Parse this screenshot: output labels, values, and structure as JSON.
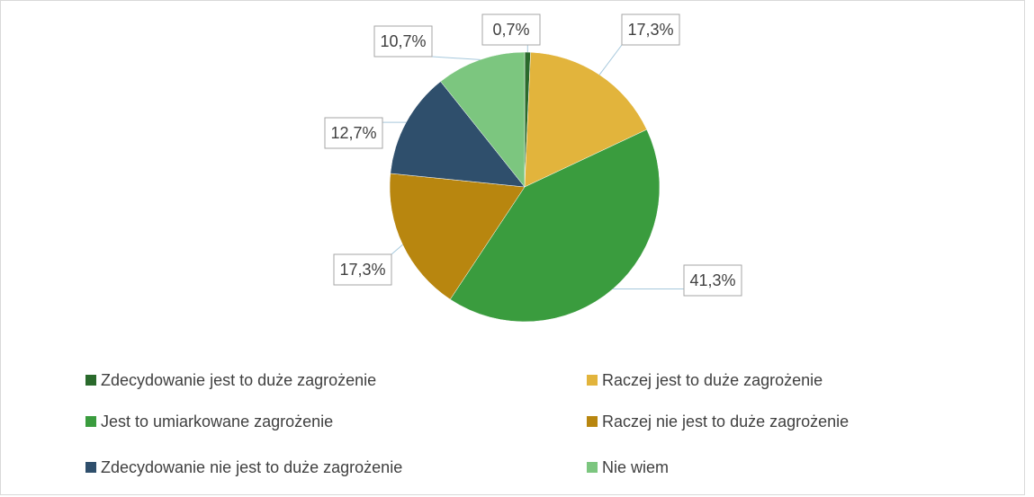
{
  "chart_data": {
    "type": "pie",
    "categories": [
      "Zdecydowanie jest to duże zagrożenie",
      "Raczej jest to duże zagrożenie",
      "Jest to umiarkowane zagrożenie",
      "Raczej nie jest to duże zagrożenie",
      "Zdecydowanie nie jest to duże zagrożenie",
      "Nie wiem"
    ],
    "values": [
      0.7,
      17.3,
      41.3,
      17.3,
      12.7,
      10.7
    ],
    "value_labels": [
      "0,7%",
      "17,3%",
      "41,3%",
      "17,3%",
      "12,7%",
      "10,7%"
    ],
    "colors": [
      "#2a6a2c",
      "#e2b43c",
      "#3a9c3e",
      "#b8860f",
      "#2f4f6c",
      "#7cc67f"
    ],
    "legend": "bottom"
  }
}
